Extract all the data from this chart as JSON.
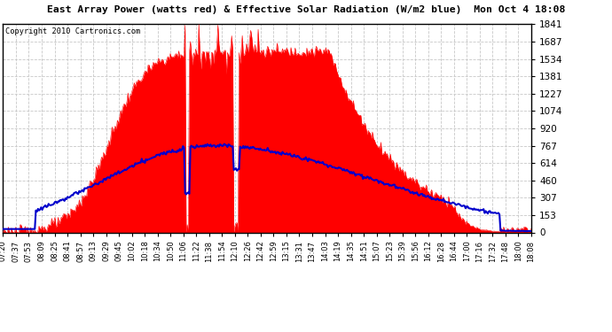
{
  "title": "East Array Power (watts red) & Effective Solar Radiation (W/m2 blue)  Mon Oct 4 18:08",
  "copyright": "Copyright 2010 Cartronics.com",
  "background_color": "#ffffff",
  "plot_bg_color": "#ffffff",
  "grid_color": "#c8c8c8",
  "y_max": 1840.8,
  "y_min": 0.0,
  "y_ticks": [
    0.0,
    153.4,
    306.8,
    460.2,
    613.6,
    767.0,
    920.4,
    1073.8,
    1227.2,
    1380.6,
    1534.0,
    1687.4,
    1840.8
  ],
  "red_color": "#ff0000",
  "blue_color": "#0000cc",
  "fill_color": "#ff0000",
  "x_tick_labels": [
    "07:20",
    "07:37",
    "07:53",
    "08:09",
    "08:25",
    "08:41",
    "08:57",
    "09:13",
    "09:29",
    "09:45",
    "10:02",
    "10:18",
    "10:34",
    "10:50",
    "11:06",
    "11:22",
    "11:38",
    "11:54",
    "12:10",
    "12:26",
    "12:42",
    "12:59",
    "13:15",
    "13:31",
    "13:47",
    "14:03",
    "14:19",
    "14:35",
    "14:51",
    "15:07",
    "15:23",
    "15:39",
    "15:56",
    "16:12",
    "16:28",
    "16:44",
    "17:00",
    "17:16",
    "17:32",
    "17:48",
    "18:00",
    "18:08"
  ]
}
